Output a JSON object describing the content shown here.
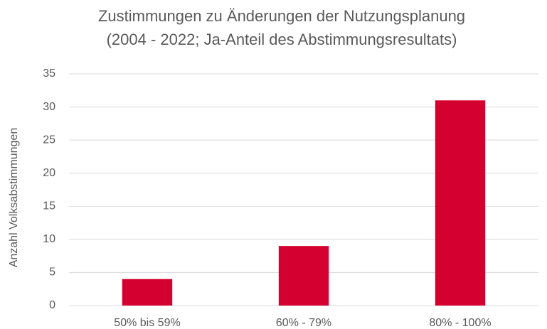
{
  "chart_data": {
    "type": "bar",
    "title": [
      "Zustimmungen zu Änderungen der Nutzungsplanung",
      "(2004 - 2022; Ja-Anteil des Abstimmungsresultats)"
    ],
    "y_label": "Anzahl Volksabstimmungen",
    "categories": [
      "50% bis 59%",
      "60% - 79%",
      "80% - 100%"
    ],
    "values": [
      4,
      9,
      31
    ],
    "color": "#d40030",
    "ylim": [
      0,
      35
    ],
    "yticks": [
      0,
      5,
      10,
      15,
      20,
      25,
      30,
      35
    ],
    "grid": true
  }
}
